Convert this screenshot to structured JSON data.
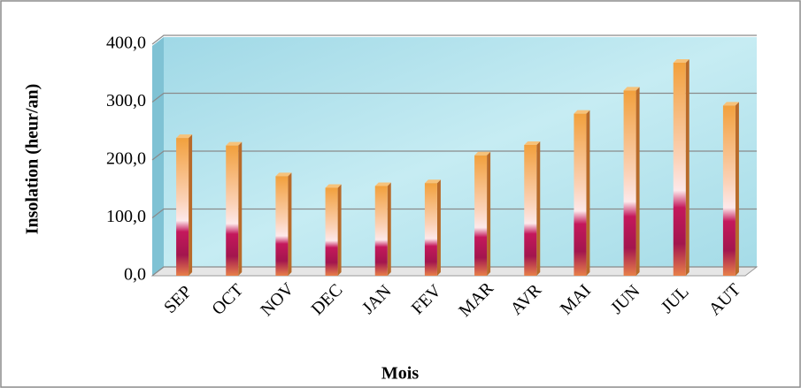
{
  "chart_data": {
    "type": "bar",
    "x_label": "Mois",
    "y_label": "Insolation (heur/an)",
    "categories": [
      "SEP",
      "OCT",
      "NOV",
      "DEC",
      "JAN",
      "FEV",
      "MAR",
      "AVR",
      "MAI",
      "JUN",
      "JUL",
      "AUT"
    ],
    "values": [
      238,
      225,
      172,
      152,
      155,
      160,
      208,
      226,
      280,
      320,
      368,
      294
    ],
    "color": "#f2a03c",
    "ylim": [
      0,
      400
    ],
    "yticks": [
      {
        "value": 0,
        "label": "0,0"
      },
      {
        "value": 100,
        "label": "100,0"
      },
      {
        "value": 200,
        "label": "200,0"
      },
      {
        "value": 300,
        "label": "300,0"
      },
      {
        "value": 400,
        "label": "400,0"
      }
    ],
    "grid": true
  }
}
